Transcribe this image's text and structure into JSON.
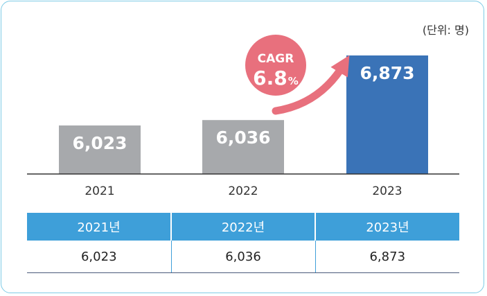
{
  "unit_label": "(단위: 명)",
  "cagr": {
    "title": "CAGR",
    "value": "6.8",
    "unit": "%"
  },
  "colors": {
    "bar_default": "#a7a9ac",
    "bar_highlight": "#3a73b7",
    "cagr_fill": "#e8707d",
    "table_header": "#3e9fd9"
  },
  "chart_data": {
    "type": "bar",
    "categories": [
      "2021",
      "2022",
      "2023"
    ],
    "values": [
      6023,
      6036,
      6873
    ],
    "value_labels": [
      "6,023",
      "6,036",
      "6,873"
    ],
    "highlight_index": 2,
    "annotation": "CAGR 6.8%"
  },
  "table": {
    "headers": [
      "2021년",
      "2022년",
      "2023년"
    ],
    "values": [
      "6,023",
      "6,036",
      "6,873"
    ]
  }
}
